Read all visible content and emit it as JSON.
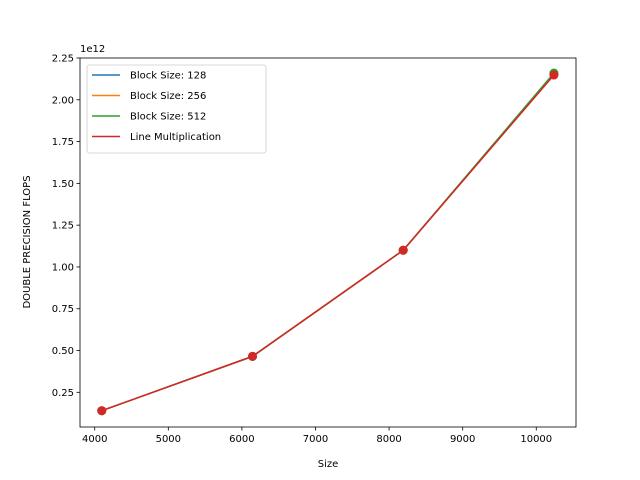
{
  "chart_data": {
    "type": "line",
    "xlabel": "Size",
    "ylabel": "DOUBLE PRECISION FLOPS",
    "y_offset_label": "1e12",
    "xlim": [
      3800,
      10540
    ],
    "ylim": [
      0.0425,
      2.25
    ],
    "x_ticks": [
      4000,
      5000,
      6000,
      7000,
      8000,
      9000,
      10000
    ],
    "x_tick_labels": [
      "4000",
      "5000",
      "6000",
      "7000",
      "8000",
      "9000",
      "10000"
    ],
    "y_ticks": [
      0.25,
      0.5,
      0.75,
      1.0,
      1.25,
      1.5,
      1.75,
      2.0,
      2.25
    ],
    "y_tick_labels": [
      "0.25",
      "0.50",
      "0.75",
      "1.00",
      "1.25",
      "1.50",
      "1.75",
      "2.00",
      "2.25"
    ],
    "grid": false,
    "legend_position": "upper-left",
    "markers": true,
    "series": [
      {
        "name": "Block Size: 128",
        "color": "#1f77b4",
        "x": [
          4096,
          6144,
          8192,
          10240
        ],
        "y": [
          0.14,
          0.465,
          1.1,
          2.155
        ]
      },
      {
        "name": "Block Size: 256",
        "color": "#ff7f0e",
        "x": [
          4096,
          6144,
          8192,
          10240
        ],
        "y": [
          0.14,
          0.465,
          1.1,
          2.15
        ]
      },
      {
        "name": "Block Size: 512",
        "color": "#2ca02c",
        "x": [
          4096,
          6144,
          8192,
          10240
        ],
        "y": [
          0.14,
          0.465,
          1.1,
          2.16
        ]
      },
      {
        "name": "Line Multiplication",
        "color": "#d62728",
        "x": [
          4096,
          6144,
          8192,
          10240
        ],
        "y": [
          0.14,
          0.465,
          1.1,
          2.148
        ]
      }
    ]
  }
}
